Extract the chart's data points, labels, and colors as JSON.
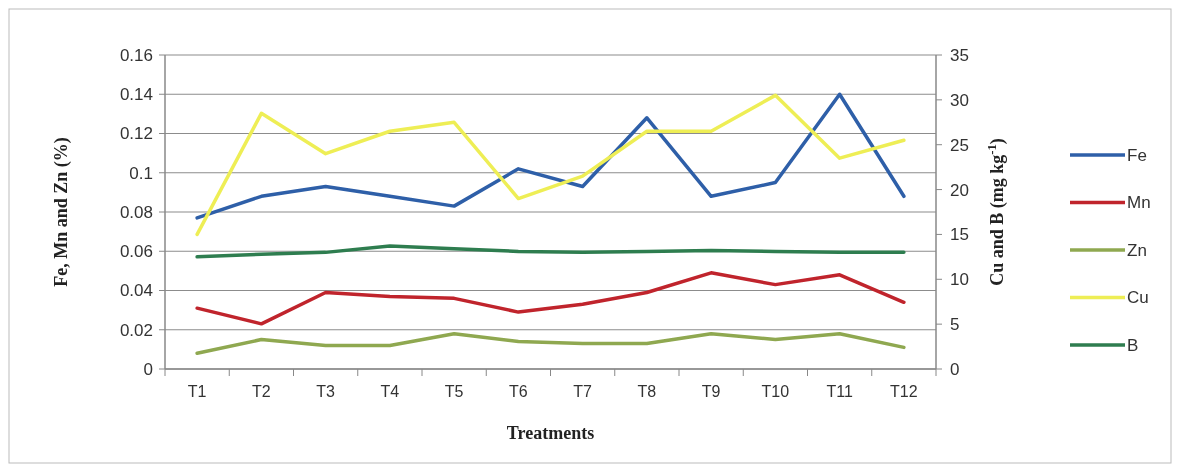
{
  "chart_data": {
    "type": "line",
    "xlabel": "Treatments",
    "ylabel": "Fe, Mn and Zn (%)",
    "y2label": "Cu and B (mg kg$^{-1}$)",
    "categories": [
      "T1",
      "T2",
      "T3",
      "T4",
      "T5",
      "T6",
      "T7",
      "T8",
      "T9",
      "T10",
      "T11",
      "T12"
    ],
    "series": [
      {
        "name": "Fe",
        "color": "#2e5fa8",
        "values": [
          0.077,
          0.088,
          0.093,
          0.088,
          0.083,
          0.102,
          0.093,
          0.128,
          0.088,
          0.095,
          0.14,
          0.088
        ]
      },
      {
        "name": "Mn",
        "color": "#c0242c",
        "values": [
          0.031,
          0.023,
          0.039,
          0.037,
          0.036,
          0.029,
          0.033,
          0.039,
          0.049,
          0.043,
          0.048,
          0.034
        ]
      },
      {
        "name": "Zn",
        "color": "#8fa850",
        "values": [
          0.008,
          0.015,
          0.012,
          0.012,
          0.018,
          0.014,
          0.013,
          0.013,
          0.018,
          0.015,
          0.018,
          0.011
        ]
      },
      {
        "name": "Cu",
        "color": "#eeee55",
        "axis": "y2",
        "values": [
          15,
          28.5,
          24,
          26.5,
          27.5,
          19,
          21.5,
          26.5,
          26.5,
          30.5,
          23.5,
          25.5
        ]
      },
      {
        "name": "B",
        "color": "#2e7d4f",
        "axis": "y2",
        "values": [
          12.5,
          12.8,
          13,
          13.7,
          13.4,
          13.1,
          13,
          13.1,
          13.2,
          13.1,
          13,
          13
        ]
      }
    ],
    "ylim": [
      0,
      0.16
    ],
    "yticks": [
      0,
      0.02,
      0.04,
      0.06,
      0.08,
      0.1,
      0.12,
      0.14,
      0.16
    ],
    "y2lim": [
      0,
      35
    ],
    "y2ticks": [
      0,
      5,
      10,
      15,
      20,
      25,
      30,
      35
    ],
    "grid": "y",
    "legend": "right",
    "marker": "none",
    "line_style": "solid"
  }
}
